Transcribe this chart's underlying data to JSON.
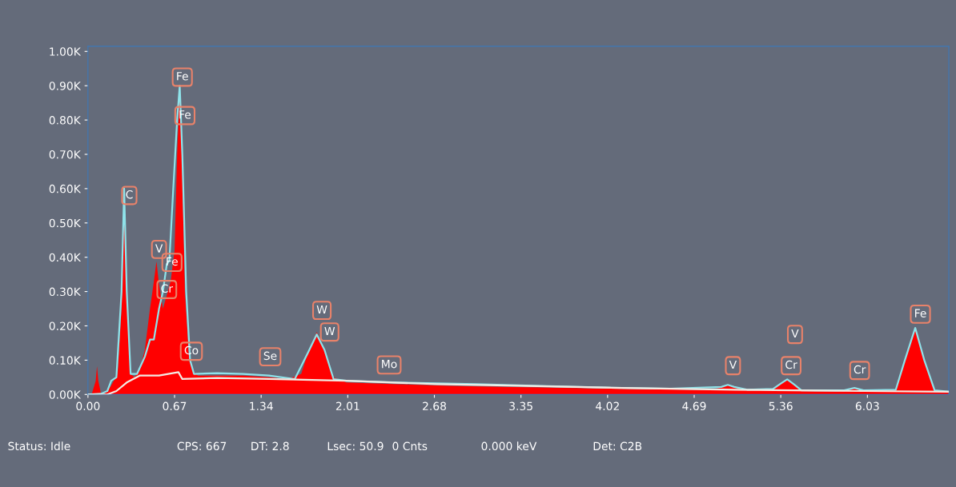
{
  "chart_data": {
    "type": "area",
    "xlim": [
      0,
      6.66
    ],
    "ylim": [
      0,
      1015
    ],
    "xticks": [
      {
        "value": 0,
        "label": "0.00"
      },
      0.67,
      1.34,
      2.01,
      2.68,
      3.35,
      4.02,
      4.69,
      5.36,
      6.03
    ],
    "yticks": [
      {
        "value": 0,
        "label": "0.00K"
      },
      {
        "value": 100,
        "label": "0.10K"
      },
      {
        "value": 200,
        "label": "0.20K"
      },
      {
        "value": 300,
        "label": "0.30K"
      },
      {
        "value": 400,
        "label": "0.40K"
      },
      {
        "value": 500,
        "label": "0.50K"
      },
      {
        "value": 600,
        "label": "0.60K"
      },
      {
        "value": 700,
        "label": "0.70K"
      },
      {
        "value": 800,
        "label": "0.80K"
      },
      {
        "value": 900,
        "label": "0.90K"
      },
      {
        "value": 1000,
        "label": "1.00K"
      }
    ],
    "grid": false,
    "legend": false,
    "series": [
      {
        "color": "#ff0000",
        "x": [
          0.0,
          0.03,
          0.06,
          0.07,
          0.08,
          0.1,
          0.13,
          0.17,
          0.2,
          0.23,
          0.26,
          0.28,
          0.3,
          0.33,
          0.36,
          0.4,
          0.44,
          0.48,
          0.51,
          0.53,
          0.55,
          0.58,
          0.61,
          0.64,
          0.67,
          0.69,
          0.71,
          0.73,
          0.75,
          0.78,
          0.81,
          0.85,
          1.0,
          1.2,
          1.4,
          1.55,
          1.65,
          1.7,
          1.77,
          1.83,
          1.9,
          2.0,
          2.4,
          2.8,
          3.2,
          3.6,
          4.0,
          4.4,
          4.8,
          4.9,
          4.95,
          5.0,
          5.1,
          5.3,
          5.36,
          5.41,
          5.46,
          5.52,
          5.8,
          5.9,
          5.93,
          5.97,
          6.1,
          6.25,
          6.32,
          6.4,
          6.47,
          6.55,
          6.66
        ],
        "values": [
          0,
          2,
          40,
          82,
          40,
          5,
          5,
          20,
          40,
          60,
          250,
          580,
          300,
          60,
          50,
          70,
          130,
          250,
          330,
          388,
          320,
          250,
          290,
          330,
          420,
          700,
          890,
          650,
          300,
          120,
          70,
          55,
          55,
          55,
          50,
          45,
          60,
          120,
          182,
          130,
          50,
          35,
          30,
          25,
          22,
          20,
          17,
          15,
          13,
          20,
          28,
          20,
          12,
          15,
          30,
          44,
          30,
          10,
          9,
          15,
          19,
          14,
          8,
          15,
          100,
          194,
          100,
          12,
          8
        ]
      },
      {
        "type": "line",
        "color": "#8fe3ea",
        "x": [
          0,
          0.1,
          0.15,
          0.18,
          0.22,
          0.26,
          0.28,
          0.3,
          0.33,
          0.38,
          0.44,
          0.48,
          0.51,
          0.55,
          0.58,
          0.61,
          0.63,
          0.66,
          0.69,
          0.71,
          0.73,
          0.76,
          0.79,
          0.82,
          1.0,
          1.2,
          1.4,
          1.6,
          1.7,
          1.77,
          1.83,
          1.9,
          2.0,
          2.4,
          3.0,
          3.5,
          4.0,
          4.5,
          4.9,
          4.95,
          5.0,
          5.1,
          5.3,
          5.36,
          5.41,
          5.46,
          5.52,
          5.85,
          5.93,
          6.0,
          6.25,
          6.32,
          6.4,
          6.47,
          6.55,
          6.66
        ],
        "values": [
          0,
          2,
          10,
          40,
          50,
          300,
          600,
          300,
          60,
          60,
          110,
          160,
          160,
          250,
          300,
          380,
          390,
          600,
          800,
          900,
          700,
          300,
          100,
          60,
          62,
          60,
          55,
          45,
          120,
          175,
          130,
          45,
          40,
          35,
          30,
          25,
          20,
          17,
          22,
          28,
          22,
          14,
          16,
          32,
          44,
          30,
          12,
          12,
          19,
          12,
          14,
          100,
          194,
          100,
          12,
          8
        ]
      },
      {
        "type": "line",
        "color": "#f2ebe3",
        "x": [
          0,
          0.15,
          0.22,
          0.3,
          0.4,
          0.55,
          0.7,
          0.73,
          1.0,
          1.4,
          1.8,
          2.0,
          2.7,
          3.4,
          4.0,
          5.0,
          6.0,
          6.66
        ],
        "values": [
          0,
          0,
          10,
          35,
          55,
          55,
          65,
          45,
          48,
          45,
          42,
          40,
          30,
          25,
          20,
          14,
          10,
          8
        ]
      }
    ],
    "annotations": [
      {
        "text": "Fe",
        "x": 0.73,
        "y": 925
      },
      {
        "text": "Fe",
        "x": 0.75,
        "y": 813
      },
      {
        "text": "C",
        "x": 0.32,
        "y": 580
      },
      {
        "text": "V",
        "x": 0.55,
        "y": 423
      },
      {
        "text": "Fe",
        "x": 0.65,
        "y": 385
      },
      {
        "text": "Cr",
        "x": 0.61,
        "y": 306
      },
      {
        "text": "Co",
        "x": 0.8,
        "y": 126
      },
      {
        "text": "Se",
        "x": 1.41,
        "y": 110
      },
      {
        "text": "W",
        "x": 1.81,
        "y": 245
      },
      {
        "text": "W",
        "x": 1.87,
        "y": 182
      },
      {
        "text": "Mo",
        "x": 2.33,
        "y": 86
      },
      {
        "text": "V",
        "x": 4.99,
        "y": 84
      },
      {
        "text": "V",
        "x": 5.47,
        "y": 175
      },
      {
        "text": "Cr",
        "x": 5.44,
        "y": 84
      },
      {
        "text": "Cr",
        "x": 5.97,
        "y": 70
      },
      {
        "text": "Fe",
        "x": 6.44,
        "y": 234
      },
      "Status: Idle",
      "CPS: 667",
      "DT: 2.8",
      "Lsec: 50.9",
      "0 Cnts",
      "0.000 keV",
      "Det: C2B"
    ]
  }
}
